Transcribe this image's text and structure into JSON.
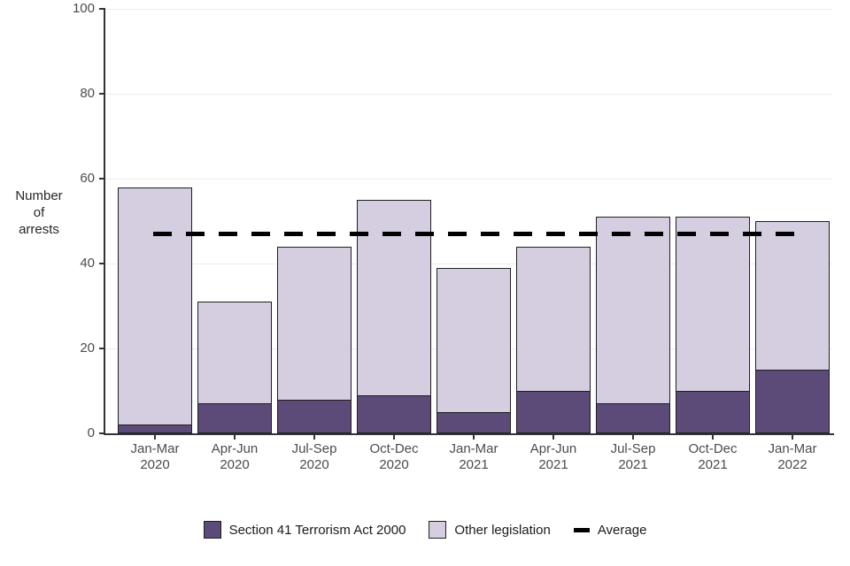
{
  "chart_data": {
    "type": "bar",
    "stacked": true,
    "title": "",
    "ylabel": "Number of arrests",
    "ylabel_lines": [
      "Number",
      "of",
      "arrests"
    ],
    "xlabel": "",
    "ylim": [
      0,
      100
    ],
    "yticks": [
      0,
      20,
      40,
      60,
      80,
      100
    ],
    "grid": true,
    "legend_position": "bottom",
    "categories": [
      [
        "Jan-Mar",
        "2020"
      ],
      [
        "Apr-Jun",
        "2020"
      ],
      [
        "Jul-Sep",
        "2020"
      ],
      [
        "Oct-Dec",
        "2020"
      ],
      [
        "Jan-Mar",
        "2021"
      ],
      [
        "Apr-Jun",
        "2021"
      ],
      [
        "Jul-Sep",
        "2021"
      ],
      [
        "Oct-Dec",
        "2021"
      ],
      [
        "Jan-Mar",
        "2022"
      ]
    ],
    "series": [
      {
        "name": "Section 41 Terrorism Act 2000",
        "color": "#5c4a78",
        "values": [
          2,
          7,
          8,
          9,
          5,
          10,
          7,
          10,
          15
        ]
      },
      {
        "name": "Other legislation",
        "color": "#d5cee0",
        "values": [
          56,
          24,
          36,
          46,
          34,
          34,
          44,
          41,
          35
        ]
      }
    ],
    "totals": [
      58,
      31,
      44,
      55,
      39,
      44,
      51,
      51,
      50
    ],
    "average_line": {
      "label": "Average",
      "value": 47,
      "color": "#000000",
      "style": "dashed"
    },
    "colors": {
      "bar_border": "#1f1f1f",
      "gridline": "#ececec",
      "axis": "#333333",
      "tick_text": "#4b4b4b",
      "label_text": "#262626"
    }
  }
}
